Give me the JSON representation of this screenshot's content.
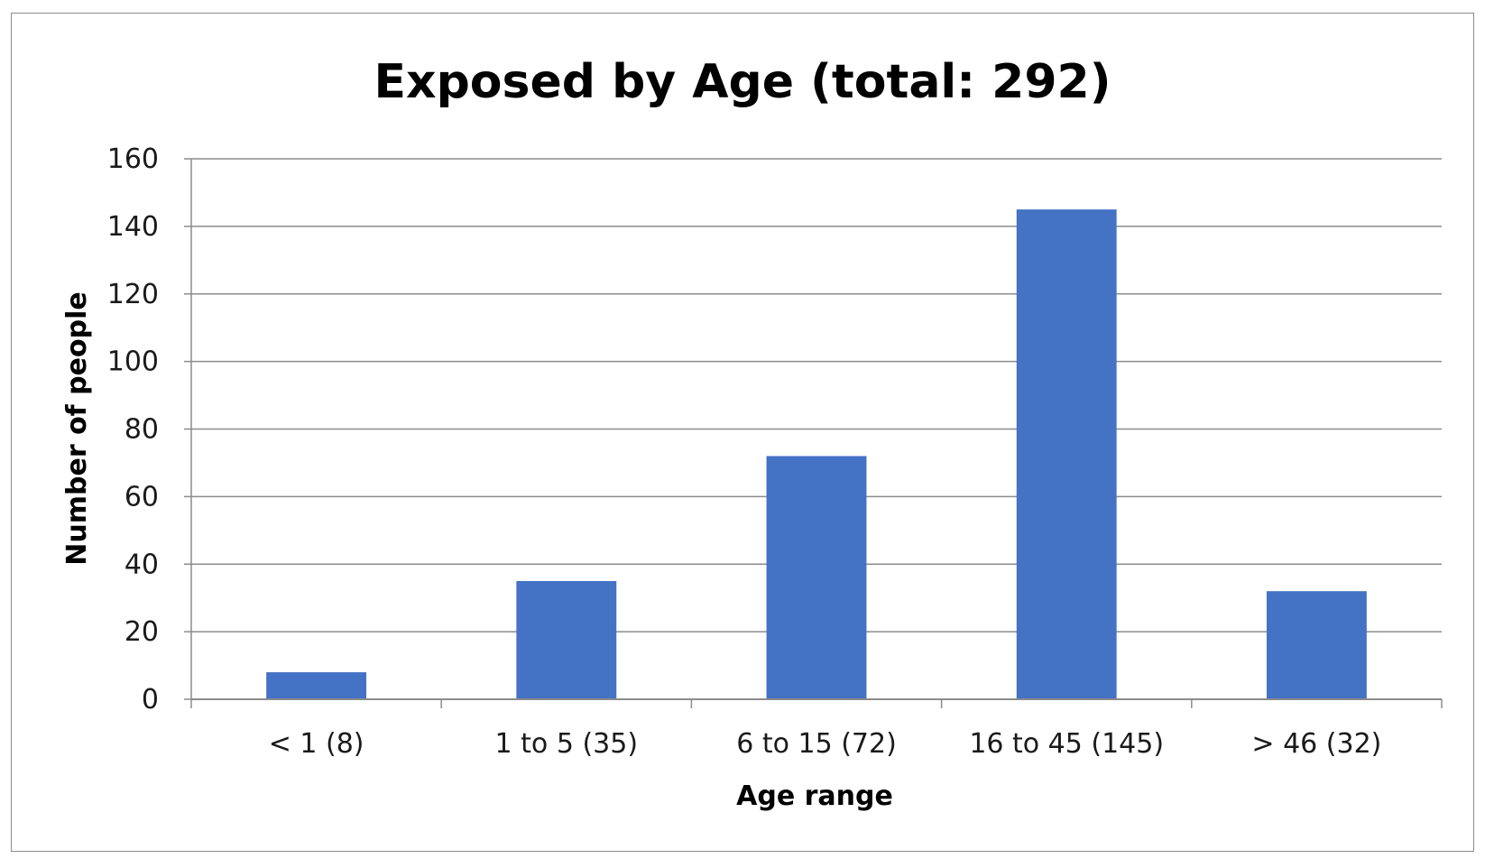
{
  "chart_data": {
    "type": "bar",
    "title": "Exposed by Age (total: 292)",
    "xlabel": "Age range",
    "ylabel": "Number of people",
    "categories": [
      "< 1 (8)",
      "1 to 5 (35)",
      "6 to 15 (72)",
      "16 to 45 (145)",
      ">  46 (32)"
    ],
    "values": [
      8,
      35,
      72,
      145,
      32
    ],
    "ylim": [
      0,
      160
    ],
    "yticks": [
      0,
      20,
      40,
      60,
      80,
      100,
      120,
      140,
      160
    ],
    "grid": true,
    "legend": "none",
    "bar_color": "#4472C4",
    "grid_color": "#8c8c8c",
    "axis_color": "#8c8c8c"
  }
}
